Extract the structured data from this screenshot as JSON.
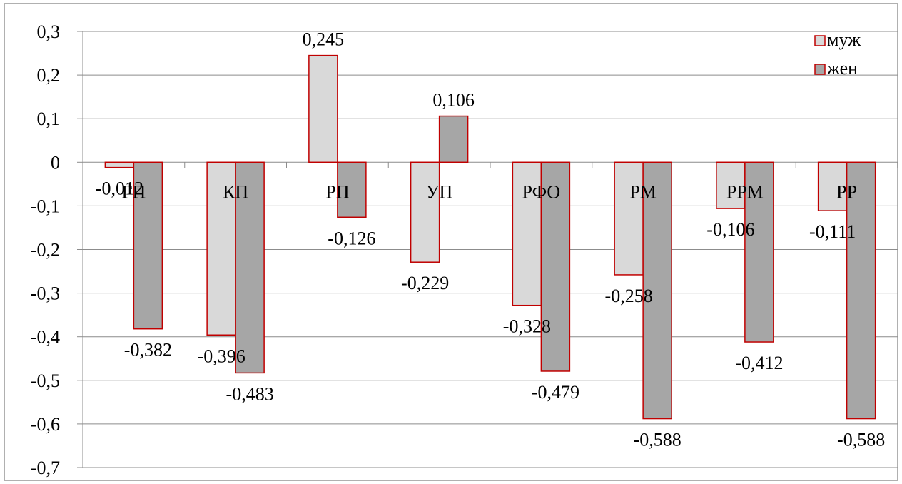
{
  "chart_data": {
    "type": "bar",
    "categories": [
      "ГП",
      "КП",
      "РП",
      "УП",
      "РФО",
      "РМ",
      "РРМ",
      "РР"
    ],
    "series": [
      {
        "name": "муж",
        "values": [
          -0.012,
          -0.396,
          0.245,
          -0.229,
          -0.328,
          -0.258,
          -0.106,
          -0.111
        ],
        "labels": [
          "-0,012",
          "-0,396",
          "0,245",
          "-0,229",
          "-0,328",
          "-0,258",
          "-0,106",
          "-0,111"
        ],
        "color": "#d9d9d9"
      },
      {
        "name": "жен",
        "values": [
          -0.382,
          -0.483,
          -0.126,
          0.106,
          -0.479,
          -0.588,
          -0.412,
          -0.588
        ],
        "labels": [
          "-0,382",
          "-0,483",
          "-0,126",
          "0,106",
          "-0,479",
          "-0,588",
          "-0,412",
          "-0,588"
        ],
        "color": "#a6a6a6"
      }
    ],
    "bar_border_color": "#c00000",
    "ylim": [
      -0.7,
      0.3
    ],
    "yticks": [
      0.3,
      0.2,
      0.1,
      0,
      -0.1,
      -0.2,
      -0.3,
      -0.4,
      -0.5,
      -0.6,
      -0.7
    ],
    "ytick_labels": [
      "0,3",
      "0,2",
      "0,1",
      "0",
      "-0,1",
      "-0,2",
      "-0,3",
      "-0,4",
      "-0,5",
      "-0,6",
      "-0,7"
    ],
    "grid": true,
    "legend_position": "top-right",
    "title": "",
    "xlabel": "",
    "ylabel": ""
  }
}
